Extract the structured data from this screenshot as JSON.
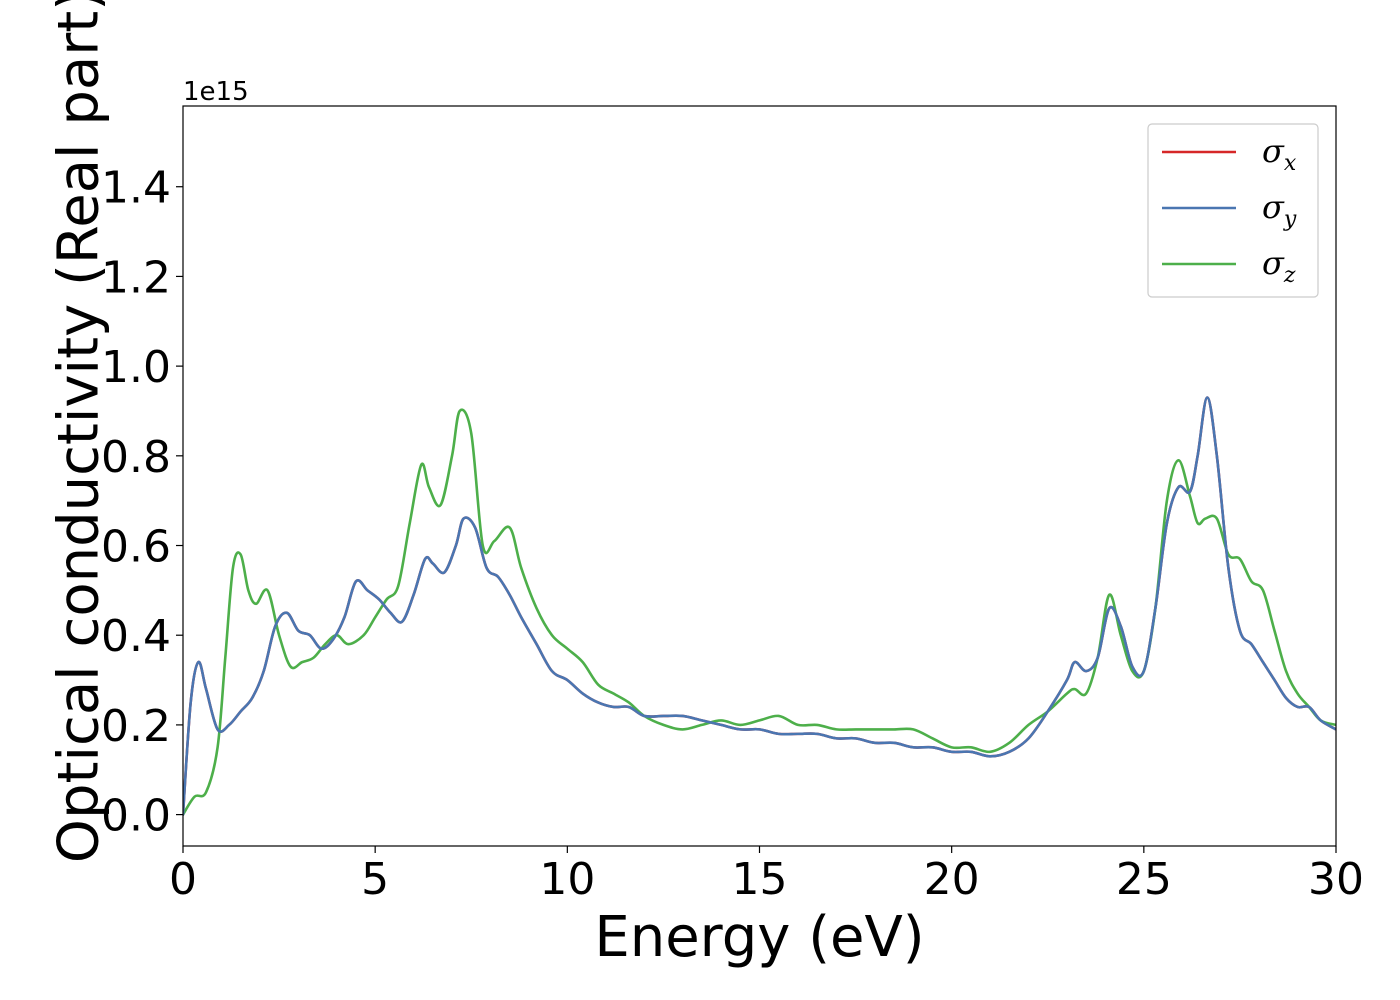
{
  "chart_data": {
    "type": "line",
    "xlabel": "Energy (eV)",
    "ylabel": "Optical conductivity (Real part)",
    "y_offset_text": "1e15",
    "xlim": [
      0,
      30
    ],
    "ylim": [
      -0.07,
      1.58
    ],
    "x_ticks": [
      0,
      5,
      10,
      15,
      20,
      25,
      30
    ],
    "x_tick_labels": [
      "0",
      "5",
      "10",
      "15",
      "20",
      "25",
      "30"
    ],
    "y_ticks": [
      0.0,
      0.2,
      0.4,
      0.6,
      0.8,
      1.0,
      1.2,
      1.4
    ],
    "y_tick_labels": [
      "0.0",
      "0.2",
      "0.4",
      "0.6",
      "0.8",
      "1.0",
      "1.2",
      "1.4"
    ],
    "grid": false,
    "legend_position": "top-right",
    "series": [
      {
        "name": "σ",
        "subscript": "x",
        "color": "#d62728",
        "x": [
          0,
          0.2,
          0.4,
          0.6,
          0.9,
          1.2,
          1.5,
          1.8,
          2.1,
          2.4,
          2.7,
          3.0,
          3.3,
          3.6,
          3.9,
          4.2,
          4.5,
          4.8,
          5.1,
          5.4,
          5.7,
          6.0,
          6.3,
          6.5,
          6.8,
          7.1,
          7.3,
          7.6,
          7.9,
          8.2,
          8.5,
          8.8,
          9.2,
          9.6,
          10.0,
          10.4,
          10.8,
          11.2,
          11.6,
          12.0,
          12.5,
          13.0,
          13.5,
          14.0,
          14.5,
          15.0,
          15.5,
          16.0,
          16.5,
          17.0,
          17.5,
          18.0,
          18.5,
          19.0,
          19.5,
          20.0,
          20.5,
          21.0,
          21.5,
          22.0,
          22.5,
          23.0,
          23.2,
          23.5,
          23.8,
          24.1,
          24.4,
          24.7,
          25.0,
          25.3,
          25.6,
          25.9,
          26.2,
          26.4,
          26.65,
          26.9,
          27.2,
          27.5,
          27.8,
          28.1,
          28.4,
          28.7,
          29.0,
          29.3,
          29.6,
          30.0
        ],
        "values": [
          0.0,
          0.25,
          0.34,
          0.28,
          0.19,
          0.2,
          0.23,
          0.26,
          0.32,
          0.42,
          0.45,
          0.41,
          0.4,
          0.37,
          0.39,
          0.44,
          0.52,
          0.5,
          0.48,
          0.45,
          0.43,
          0.49,
          0.57,
          0.56,
          0.54,
          0.6,
          0.66,
          0.64,
          0.55,
          0.53,
          0.49,
          0.44,
          0.38,
          0.32,
          0.3,
          0.27,
          0.25,
          0.24,
          0.24,
          0.22,
          0.22,
          0.22,
          0.21,
          0.2,
          0.19,
          0.19,
          0.18,
          0.18,
          0.18,
          0.17,
          0.17,
          0.16,
          0.16,
          0.15,
          0.15,
          0.14,
          0.14,
          0.13,
          0.14,
          0.17,
          0.23,
          0.3,
          0.34,
          0.32,
          0.35,
          0.46,
          0.42,
          0.33,
          0.32,
          0.46,
          0.65,
          0.73,
          0.72,
          0.8,
          0.93,
          0.8,
          0.55,
          0.41,
          0.38,
          0.34,
          0.3,
          0.26,
          0.24,
          0.24,
          0.21,
          0.19
        ]
      },
      {
        "name": "σ",
        "subscript": "y",
        "color": "#4a76b1",
        "x": [
          0,
          0.2,
          0.4,
          0.6,
          0.9,
          1.2,
          1.5,
          1.8,
          2.1,
          2.4,
          2.7,
          3.0,
          3.3,
          3.6,
          3.9,
          4.2,
          4.5,
          4.8,
          5.1,
          5.4,
          5.7,
          6.0,
          6.3,
          6.5,
          6.8,
          7.1,
          7.3,
          7.6,
          7.9,
          8.2,
          8.5,
          8.8,
          9.2,
          9.6,
          10.0,
          10.4,
          10.8,
          11.2,
          11.6,
          12.0,
          12.5,
          13.0,
          13.5,
          14.0,
          14.5,
          15.0,
          15.5,
          16.0,
          16.5,
          17.0,
          17.5,
          18.0,
          18.5,
          19.0,
          19.5,
          20.0,
          20.5,
          21.0,
          21.5,
          22.0,
          22.5,
          23.0,
          23.2,
          23.5,
          23.8,
          24.1,
          24.4,
          24.7,
          25.0,
          25.3,
          25.6,
          25.9,
          26.2,
          26.4,
          26.65,
          26.9,
          27.2,
          27.5,
          27.8,
          28.1,
          28.4,
          28.7,
          29.0,
          29.3,
          29.6,
          30.0
        ],
        "values": [
          0.0,
          0.25,
          0.34,
          0.28,
          0.19,
          0.2,
          0.23,
          0.26,
          0.32,
          0.42,
          0.45,
          0.41,
          0.4,
          0.37,
          0.39,
          0.44,
          0.52,
          0.5,
          0.48,
          0.45,
          0.43,
          0.49,
          0.57,
          0.56,
          0.54,
          0.6,
          0.66,
          0.64,
          0.55,
          0.53,
          0.49,
          0.44,
          0.38,
          0.32,
          0.3,
          0.27,
          0.25,
          0.24,
          0.24,
          0.22,
          0.22,
          0.22,
          0.21,
          0.2,
          0.19,
          0.19,
          0.18,
          0.18,
          0.18,
          0.17,
          0.17,
          0.16,
          0.16,
          0.15,
          0.15,
          0.14,
          0.14,
          0.13,
          0.14,
          0.17,
          0.23,
          0.3,
          0.34,
          0.32,
          0.35,
          0.46,
          0.42,
          0.33,
          0.32,
          0.46,
          0.65,
          0.73,
          0.72,
          0.8,
          0.93,
          0.8,
          0.55,
          0.41,
          0.38,
          0.34,
          0.3,
          0.26,
          0.24,
          0.24,
          0.21,
          0.19
        ]
      },
      {
        "name": "σ",
        "subscript": "z",
        "color": "#4daf4a",
        "x": [
          0,
          0.3,
          0.6,
          0.9,
          1.1,
          1.3,
          1.5,
          1.7,
          1.9,
          2.2,
          2.5,
          2.8,
          3.1,
          3.4,
          3.7,
          4.0,
          4.3,
          4.7,
          5.0,
          5.3,
          5.6,
          5.9,
          6.2,
          6.4,
          6.7,
          7.0,
          7.2,
          7.5,
          7.8,
          8.1,
          8.5,
          8.8,
          9.2,
          9.6,
          10.0,
          10.4,
          10.8,
          11.2,
          11.6,
          12.0,
          12.5,
          13.0,
          13.5,
          14.0,
          14.5,
          15.0,
          15.5,
          16.0,
          16.5,
          17.0,
          17.5,
          18.0,
          18.5,
          19.0,
          19.5,
          20.0,
          20.5,
          21.0,
          21.5,
          22.0,
          22.5,
          23.0,
          23.2,
          23.5,
          23.8,
          24.1,
          24.4,
          24.7,
          25.0,
          25.3,
          25.6,
          25.9,
          26.2,
          26.4,
          26.6,
          26.9,
          27.2,
          27.5,
          27.8,
          28.1,
          28.4,
          28.7,
          29.0,
          29.3,
          29.6,
          30.0
        ],
        "values": [
          0.0,
          0.04,
          0.05,
          0.15,
          0.35,
          0.55,
          0.58,
          0.5,
          0.47,
          0.5,
          0.4,
          0.33,
          0.34,
          0.35,
          0.38,
          0.4,
          0.38,
          0.4,
          0.44,
          0.48,
          0.51,
          0.65,
          0.78,
          0.73,
          0.69,
          0.8,
          0.9,
          0.85,
          0.6,
          0.61,
          0.64,
          0.55,
          0.46,
          0.4,
          0.37,
          0.34,
          0.29,
          0.27,
          0.25,
          0.22,
          0.2,
          0.19,
          0.2,
          0.21,
          0.2,
          0.21,
          0.22,
          0.2,
          0.2,
          0.19,
          0.19,
          0.19,
          0.19,
          0.19,
          0.17,
          0.15,
          0.15,
          0.14,
          0.16,
          0.2,
          0.23,
          0.27,
          0.28,
          0.27,
          0.35,
          0.49,
          0.4,
          0.32,
          0.32,
          0.46,
          0.7,
          0.79,
          0.71,
          0.65,
          0.66,
          0.66,
          0.58,
          0.57,
          0.52,
          0.5,
          0.41,
          0.32,
          0.27,
          0.24,
          0.21,
          0.2
        ]
      }
    ]
  }
}
